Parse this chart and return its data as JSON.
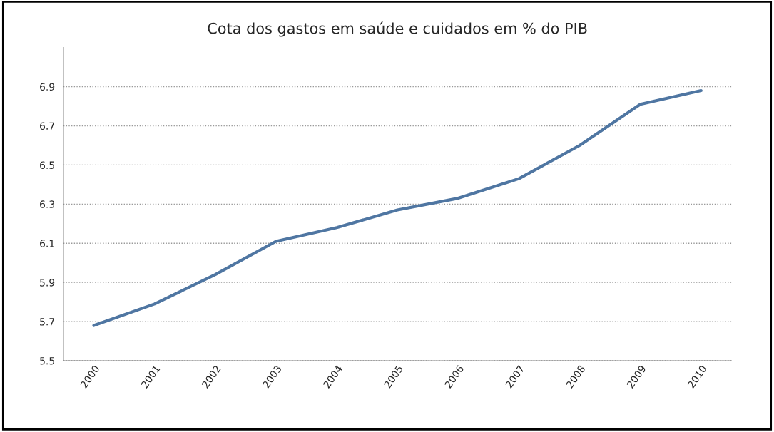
{
  "chart_data": {
    "type": "line",
    "title": "Cota dos gastos em saúde e cuidados em % do PIB",
    "categories": [
      "2000",
      "2001",
      "2002",
      "2003",
      "2004",
      "2005",
      "2006",
      "2007",
      "2008",
      "2009",
      "2010"
    ],
    "series": [
      {
        "color": "#4f76a2",
        "values": [
          5.68,
          5.79,
          5.94,
          6.11,
          6.18,
          6.27,
          6.33,
          6.43,
          6.6,
          6.81,
          6.88
        ]
      }
    ],
    "ylim": [
      5.5,
      7.1
    ],
    "yticks": [
      {
        "value": 5.5,
        "label": "5.5"
      },
      {
        "value": 5.7,
        "label": "5.7"
      },
      {
        "value": 5.9,
        "label": "5.9"
      },
      {
        "value": 6.1,
        "label": "6.1"
      },
      {
        "value": 6.3,
        "label": "6.3"
      },
      {
        "value": 6.5,
        "label": "6.5"
      },
      {
        "value": 6.7,
        "label": "6.7"
      },
      {
        "value": 6.9,
        "label": "6.9"
      }
    ],
    "grid": "y",
    "line_style": "solid",
    "marker": "none"
  }
}
